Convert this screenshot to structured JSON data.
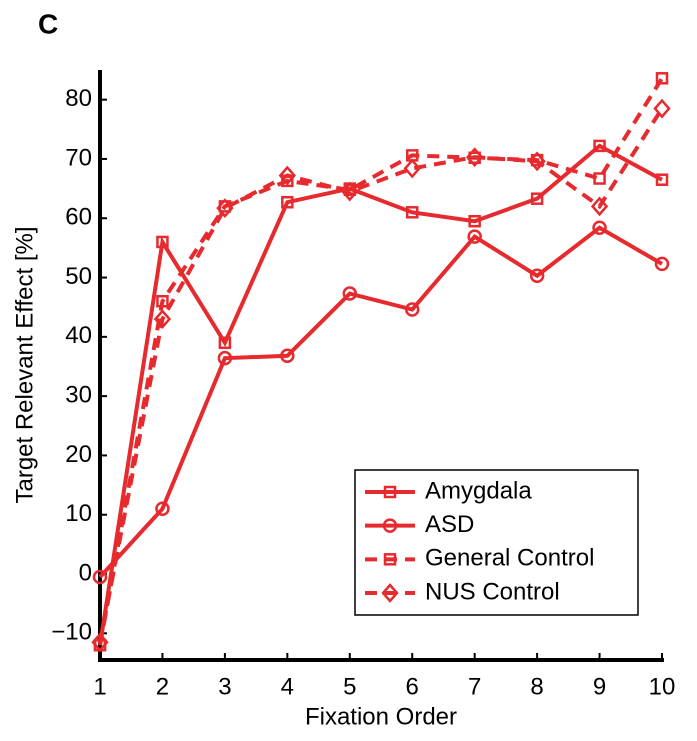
{
  "panel_label": "C",
  "chart_data": {
    "type": "line",
    "xlabel": "Fixation Order",
    "ylabel": "Target Relevant Effect [%]",
    "x": [
      1,
      2,
      3,
      4,
      5,
      6,
      7,
      8,
      9,
      10
    ],
    "xlim": [
      1,
      10
    ],
    "xticks": [
      1,
      2,
      3,
      4,
      5,
      6,
      7,
      8,
      9,
      10
    ],
    "ylim": [
      -14.5,
      85
    ],
    "yticks": [
      {
        "value": -10,
        "label": "−10"
      },
      0,
      10,
      20,
      30,
      40,
      50,
      60,
      70,
      80
    ],
    "legend": "lower right",
    "series": [
      {
        "name": "Amygdala",
        "color": "#e62a2e",
        "line_style": "solid",
        "marker": "square",
        "values": [
          -12,
          56,
          39,
          62.7,
          65,
          61,
          59.5,
          63.3,
          72.2,
          66.5
        ]
      },
      {
        "name": "ASD",
        "color": "#e62a2e",
        "line_style": "solid",
        "marker": "circle",
        "values": [
          -0.5,
          11,
          36.4,
          36.8,
          47.3,
          44.6,
          56.9,
          50.3,
          58.4,
          52.3
        ]
      },
      {
        "name": "General Control",
        "color": "#e62a2e",
        "line_style": "dashed",
        "marker": "square",
        "values": [
          -12,
          46,
          62,
          66.3,
          64.8,
          70.6,
          70.2,
          69.8,
          66.7,
          83.6
        ]
      },
      {
        "name": "NUS Control",
        "color": "#e62a2e",
        "line_style": "dashed",
        "marker": "diamond",
        "values": [
          -11.5,
          43,
          61.7,
          67.2,
          64.5,
          68.4,
          70.3,
          69.6,
          62,
          78.5
        ]
      }
    ]
  }
}
